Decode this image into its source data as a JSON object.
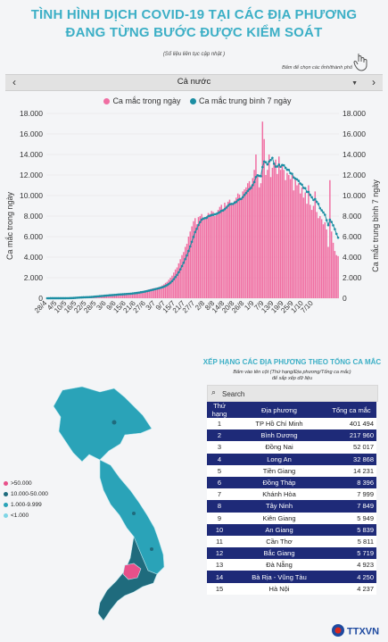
{
  "header": {
    "title_line1": "TÌNH HÌNH DỊCH COVID-19 TẠI CÁC ĐỊA PHƯƠNG",
    "title_line2": "ĐANG TỪNG BƯỚC ĐƯỢC KIỂM SOÁT",
    "note": "(Số liệu liên tục cập nhật )",
    "map_hint": "Bấm để chọn các tỉnh/thành phố"
  },
  "selector": {
    "label": "Cả nước",
    "prev_icon": "chevron-left-icon",
    "next_icon": "chevron-right-icon"
  },
  "chart_data": {
    "type": "bar",
    "legend_position": "top",
    "series": [
      {
        "name": "Ca mắc trong ngày",
        "type": "bar",
        "color": "#f06ea2"
      },
      {
        "name": "Ca mắc trung bình 7 ngày",
        "type": "line",
        "color": "#1c8ea3"
      }
    ],
    "ylabel": "Ca mắc trong ngày",
    "y2label": "Ca mắc trung bình 7 ngày",
    "ylim": [
      0,
      18000
    ],
    "y_ticks": [
      "0",
      "2.000",
      "4.000",
      "6.000",
      "8.000",
      "10.000",
      "12.000",
      "14.000",
      "16.000",
      "18.000"
    ],
    "x_ticks": [
      "28/4",
      "4/5",
      "10/5",
      "16/5",
      "22/5",
      "28/5",
      "3/6",
      "9/6",
      "15/6",
      "21/6",
      "27/6",
      "3/7",
      "9/7",
      "15/7",
      "21/7",
      "27/7",
      "2/8",
      "8/8",
      "14/8",
      "20/8",
      "26/8",
      "1/9",
      "7/9",
      "13/9",
      "19/9",
      "25/9",
      "1/10",
      "7/10"
    ],
    "x_start": "2021-04-28",
    "daily_values": [
      0,
      2,
      3,
      4,
      1,
      2,
      5,
      3,
      4,
      6,
      8,
      10,
      12,
      20,
      30,
      35,
      60,
      90,
      110,
      100,
      80,
      85,
      95,
      105,
      120,
      140,
      160,
      170,
      190,
      200,
      210,
      220,
      250,
      270,
      260,
      280,
      300,
      320,
      310,
      330,
      350,
      360,
      380,
      400,
      420,
      380,
      400,
      430,
      460,
      470,
      480,
      500,
      520,
      540,
      560,
      600,
      650,
      700,
      680,
      720,
      780,
      820,
      850,
      900,
      950,
      980,
      1000,
      1050,
      1100,
      1150,
      1250,
      1350,
      1500,
      1600,
      1800,
      2000,
      2200,
      2500,
      2800,
      3000,
      3400,
      3800,
      4200,
      4500,
      5000,
      5300,
      6000,
      6500,
      7000,
      7500,
      7800,
      7200,
      7900,
      8000,
      8200,
      7700,
      7800,
      8000,
      8300,
      8200,
      8500,
      8400,
      8000,
      8100,
      8600,
      8900,
      9100,
      8700,
      9300,
      9000,
      9400,
      9600,
      9200,
      9100,
      9500,
      9800,
      10200,
      10100,
      9800,
      10400,
      10600,
      10800,
      11200,
      11400,
      11000,
      11700,
      12500,
      14000,
      12000,
      10800,
      11200,
      17200,
      15500,
      12000,
      12500,
      14000,
      11800,
      12700,
      13200,
      13500,
      12100,
      13800,
      12500,
      13000,
      12500,
      11500,
      12200,
      12000,
      11600,
      12000,
      10500,
      11700,
      11000,
      11200,
      10200,
      10800,
      9800,
      10300,
      9200,
      11000,
      9100,
      8600,
      9000,
      10400,
      8400,
      7800,
      8000,
      7700,
      7200,
      7400,
      6700,
      5000,
      11500,
      6500,
      5400,
      4600,
      4200,
      4100
    ]
  },
  "ranking": {
    "title": "XẾP HẠNG CÁC ĐỊA PHƯƠNG THEO TỔNG CA MẮC",
    "subtitle_line1": "Bấm vào tên cột (Thứ hạng/Địa phương/Tổng ca mắc)",
    "subtitle_line2": "để sắp xếp dữ liệu",
    "search_placeholder": "Search",
    "columns": [
      "Thứ hạng",
      "Địa phương",
      "Tổng ca mắc"
    ],
    "rows": [
      [
        "1",
        "TP Hồ Chí Minh",
        "401 494"
      ],
      [
        "2",
        "Bình Dương",
        "217 960"
      ],
      [
        "3",
        "Đồng Nai",
        "52 017"
      ],
      [
        "4",
        "Long An",
        "32 868"
      ],
      [
        "5",
        "Tiền Giang",
        "14 231"
      ],
      [
        "6",
        "Đồng Tháp",
        "8 396"
      ],
      [
        "7",
        "Khánh Hòa",
        "7 999"
      ],
      [
        "8",
        "Tây Ninh",
        "7 849"
      ],
      [
        "9",
        "Kiên Giang",
        "5 949"
      ],
      [
        "10",
        "An Giang",
        "5 839"
      ],
      [
        "11",
        "Cần Thơ",
        "5 811"
      ],
      [
        "12",
        "Bắc Giang",
        "5 719"
      ],
      [
        "13",
        "Đà Nẵng",
        "4 923"
      ],
      [
        "14",
        "Bà Rịa - Vũng Tàu",
        "4 250"
      ],
      [
        "15",
        "Hà Nội",
        "4 237"
      ]
    ]
  },
  "map_legend": [
    {
      "label": ">50.000",
      "color": "#e8508a"
    },
    {
      "label": "10.000-50.000",
      "color": "#1f6b7d"
    },
    {
      "label": "1.000-9.999",
      "color": "#2aa3b8"
    },
    {
      "label": "<1.000",
      "color": "#7fd6e6"
    }
  ],
  "logo": {
    "text": "TTXVN",
    "icon": "ttxvn-logo-icon"
  }
}
